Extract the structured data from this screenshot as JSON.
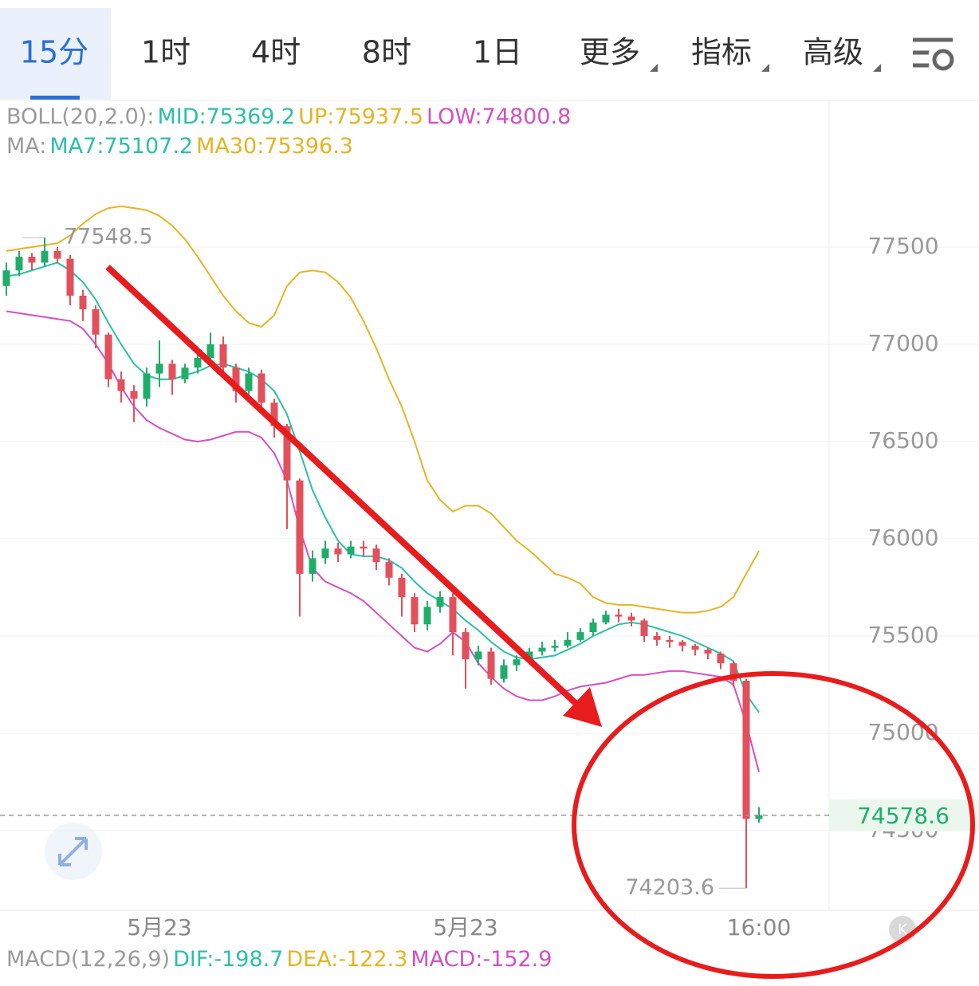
{
  "tabs": [
    "15分",
    "1时",
    "4时",
    "8时",
    "1日",
    "更多",
    "指标",
    "高级"
  ],
  "chart_data": {
    "type": "candlestick",
    "indicator_lines": [
      [
        {
          "text": "BOLL(20,2.0):",
          "color": "#9a9a9a"
        },
        {
          "text": "MID:75369.2",
          "color": "#2bbfa8"
        },
        {
          "text": "UP:75937.5",
          "color": "#e6b422"
        },
        {
          "text": "LOW:74800.8",
          "color": "#d44fc4"
        }
      ],
      [
        {
          "text": "MA:",
          "color": "#9a9a9a"
        },
        {
          "text": "MA7:75107.2",
          "color": "#2bbfa8"
        },
        {
          "text": "MA30:75396.3",
          "color": "#e6b422"
        }
      ]
    ],
    "macd_labels": [
      {
        "text": "MACD(12,26,9)",
        "color": "#9a9a9a"
      },
      {
        "text": "DIF:-198.7",
        "color": "#2bbfa8"
      },
      {
        "text": "DEA:-122.3",
        "color": "#e6b422"
      },
      {
        "text": "MACD:-152.9",
        "color": "#d44fc4"
      }
    ],
    "categories": [
      null,
      null,
      null,
      null,
      null,
      null,
      null,
      null,
      null,
      null,
      null,
      null,
      "5月23",
      null,
      null,
      null,
      null,
      null,
      null,
      null,
      null,
      null,
      null,
      null,
      null,
      null,
      null,
      null,
      null,
      null,
      null,
      null,
      null,
      null,
      null,
      null,
      "5月23",
      null,
      null,
      null,
      null,
      null,
      null,
      null,
      null,
      null,
      null,
      null,
      null,
      null,
      null,
      null,
      null,
      null,
      null,
      null,
      null,
      null,
      null,
      "16:00"
    ],
    "open": [
      77300,
      77380,
      77450,
      77420,
      77480,
      77440,
      77250,
      77180,
      77050,
      76820,
      76760,
      76720,
      76850,
      76900,
      76820,
      76880,
      76930,
      77000,
      76880,
      76760,
      76850,
      76700,
      76580,
      76300,
      75820,
      75900,
      75950,
      75920,
      75960,
      75950,
      75880,
      75800,
      75700,
      75560,
      75650,
      75700,
      75520,
      75380,
      75420,
      75280,
      75350,
      75380,
      75420,
      75440,
      75450,
      75480,
      75520,
      75570,
      75610,
      75600,
      75580,
      75500,
      75480,
      75470,
      75450,
      75430,
      75410,
      75360,
      75270,
      74560
    ],
    "high": [
      77420,
      77480,
      77470,
      77548.5,
      77500,
      77460,
      77280,
      77200,
      77060,
      76860,
      76790,
      76880,
      77020,
      76920,
      76900,
      76950,
      77060,
      77040,
      76900,
      76880,
      76870,
      76720,
      76590,
      76310,
      75940,
      75990,
      75980,
      75990,
      75990,
      75970,
      75900,
      75820,
      75720,
      75680,
      75730,
      75720,
      75540,
      75450,
      75440,
      75380,
      75400,
      75440,
      75470,
      75480,
      75520,
      75540,
      75590,
      75630,
      75640,
      75620,
      75590,
      75520,
      75500,
      75480,
      75460,
      75440,
      75420,
      75370,
      75280,
      74620
    ],
    "low": [
      77250,
      77350,
      77380,
      77400,
      77420,
      77200,
      77120,
      76980,
      76780,
      76700,
      76600,
      76680,
      76780,
      76740,
      76800,
      76850,
      76900,
      76840,
      76700,
      76720,
      76650,
      76520,
      76050,
      75600,
      75780,
      75870,
      75880,
      75900,
      75910,
      75840,
      75760,
      75600,
      75520,
      75530,
      75620,
      75400,
      75230,
      75350,
      75250,
      75260,
      75320,
      75360,
      75400,
      75420,
      75440,
      75470,
      75500,
      75560,
      75570,
      75550,
      75470,
      75450,
      75440,
      75420,
      75400,
      75380,
      75330,
      75240,
      74203.6,
      74540
    ],
    "close": [
      77380,
      77450,
      77420,
      77480,
      77440,
      77250,
      77180,
      77050,
      76820,
      76760,
      76720,
      76850,
      76900,
      76820,
      76880,
      76930,
      77000,
      76880,
      76760,
      76850,
      76700,
      76580,
      76300,
      75820,
      75900,
      75950,
      75920,
      75960,
      75950,
      75880,
      75800,
      75700,
      75560,
      75650,
      75700,
      75520,
      75380,
      75420,
      75280,
      75350,
      75380,
      75420,
      75440,
      75450,
      75480,
      75520,
      75570,
      75610,
      75600,
      75580,
      75500,
      75480,
      75470,
      75450,
      75430,
      75410,
      75360,
      75270,
      74560,
      74578.6
    ],
    "up_color": "#1fae6a",
    "down_color": "#e2505c",
    "series": [
      {
        "color": "#e6b422",
        "values": [
          77480,
          77490,
          77500,
          77510,
          77520,
          77560,
          77620,
          77670,
          77700,
          77710,
          77700,
          77690,
          77660,
          77610,
          77540,
          77450,
          77350,
          77250,
          77170,
          77110,
          77090,
          77150,
          77300,
          77370,
          77380,
          77370,
          77320,
          77240,
          77120,
          76980,
          76820,
          76680,
          76500,
          76300,
          76200,
          76140,
          76170,
          76170,
          76130,
          76060,
          75990,
          75940,
          75880,
          75820,
          75800,
          75770,
          75700,
          75670,
          75660,
          75660,
          75650,
          75640,
          75630,
          75620,
          75620,
          75630,
          75650,
          75700,
          75820,
          75937.5
        ]
      },
      {
        "color": "#d44fc4",
        "values": [
          77170,
          77160,
          77150,
          77140,
          77130,
          77120,
          77080,
          77000,
          76900,
          76780,
          76680,
          76610,
          76570,
          76540,
          76510,
          76500,
          76510,
          76530,
          76550,
          76550,
          76520,
          76440,
          76300,
          76050,
          75850,
          75780,
          75750,
          75720,
          75680,
          75620,
          75560,
          75500,
          75440,
          75420,
          75460,
          75520,
          75470,
          75360,
          75290,
          75230,
          75190,
          75170,
          75170,
          75190,
          75220,
          75240,
          75250,
          75260,
          75280,
          75300,
          75300,
          75310,
          75320,
          75320,
          75310,
          75300,
          75290,
          75250,
          75050,
          74800.8
        ]
      },
      {
        "color": "#2bbfa8",
        "values": [
          77350,
          77360,
          77380,
          77400,
          77420,
          77380,
          77320,
          77230,
          77110,
          77000,
          76900,
          76840,
          76820,
          76820,
          76840,
          76860,
          76890,
          76900,
          76880,
          76860,
          76820,
          76760,
          76640,
          76450,
          76250,
          76110,
          75990,
          75920,
          75910,
          75910,
          75890,
          75850,
          75780,
          75720,
          75680,
          75640,
          75580,
          75530,
          75470,
          75420,
          75390,
          75380,
          75390,
          75400,
          75430,
          75460,
          75500,
          75530,
          75560,
          75570,
          75560,
          75540,
          75520,
          75500,
          75470,
          75440,
          75410,
          75370,
          75200,
          75107.2
        ]
      }
    ],
    "ylim": [
      74090,
      78258
    ],
    "yticks": [
      74500,
      75000,
      75500,
      76000,
      76500,
      77000,
      77500
    ],
    "grid": true,
    "high_label": 77548.5,
    "low_label": 74203.6,
    "last_price": 74578.6
  }
}
